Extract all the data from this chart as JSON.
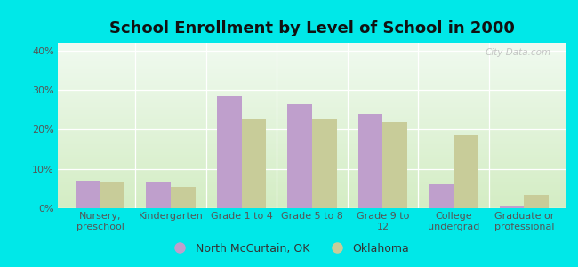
{
  "title": "School Enrollment by Level of School in 2000",
  "categories": [
    "Nursery,\npreschool",
    "Kindergarten",
    "Grade 1 to 4",
    "Grade 5 to 8",
    "Grade 9 to\n12",
    "College\nundergrad",
    "Graduate or\nprofessional"
  ],
  "north_mccurtain": [
    7.0,
    6.5,
    28.5,
    26.5,
    24.0,
    6.0,
    0.5
  ],
  "oklahoma": [
    6.5,
    5.5,
    22.5,
    22.5,
    22.0,
    18.5,
    3.5
  ],
  "bar_color_city": "#bf9fcc",
  "bar_color_state": "#c8cc99",
  "background_outer": "#00e8e8",
  "background_grad_top": "#d4edc4",
  "background_grad_bottom": "#f0faf0",
  "ylim": [
    0,
    42
  ],
  "yticks": [
    0,
    10,
    20,
    30,
    40
  ],
  "ytick_labels": [
    "0%",
    "10%",
    "20%",
    "30%",
    "40%"
  ],
  "legend_city": "North McCurtain, OK",
  "legend_state": "Oklahoma",
  "watermark": "City-Data.com",
  "title_fontsize": 13,
  "tick_fontsize": 8,
  "legend_fontsize": 9
}
